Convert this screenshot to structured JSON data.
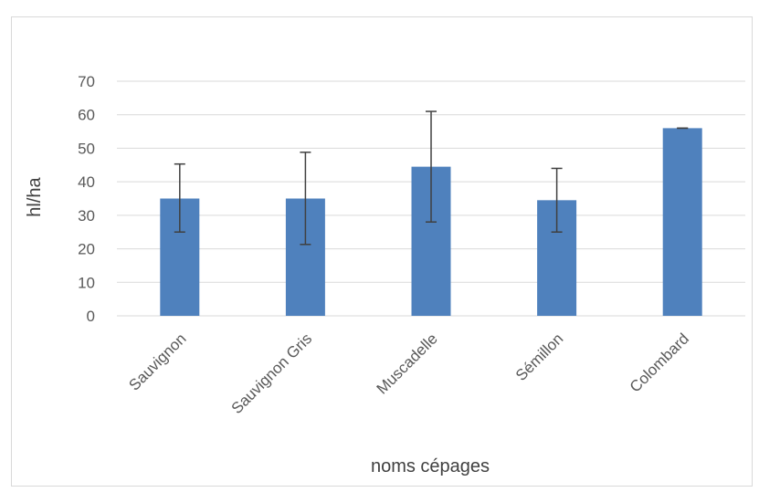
{
  "chart_data": {
    "type": "bar",
    "title": "",
    "xlabel": "noms cépages",
    "ylabel": "hl/ha",
    "categories": [
      "Sauvignon",
      "Sauvignon Gris",
      "Muscadelle",
      "Sémillon",
      "Colombard"
    ],
    "values": [
      35,
      35,
      44.5,
      34.5,
      56
    ],
    "error_bars": [
      {
        "low": 25,
        "high": 45.3
      },
      {
        "low": 21.3,
        "high": 48.8
      },
      {
        "low": 28,
        "high": 61
      },
      {
        "low": 25,
        "high": 44
      },
      {
        "low": 56,
        "high": 56
      }
    ],
    "ylim": [
      0,
      70
    ],
    "yticks": [
      0,
      10,
      20,
      30,
      40,
      50,
      60,
      70
    ],
    "grid": true,
    "legend": "none",
    "colors": {
      "bar": "#4f81bd",
      "grid": "#d9d9d9",
      "error": "#404040"
    }
  }
}
